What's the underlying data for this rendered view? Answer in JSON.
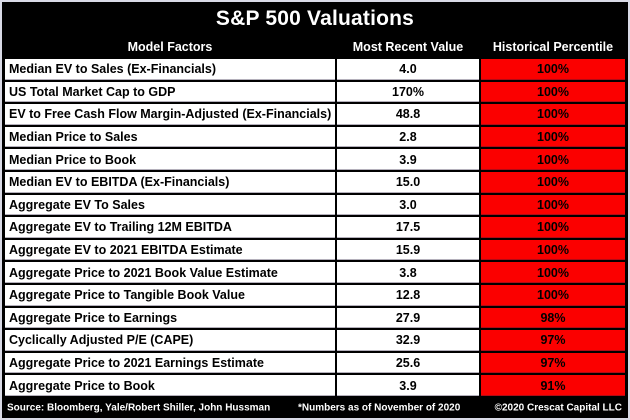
{
  "title": "S&P 500 Valuations",
  "chart_data": {
    "type": "table",
    "title": "S&P 500 Valuations",
    "columns": [
      "Model Factors",
      "Most Recent Value",
      "Historical Percentile"
    ],
    "rows": [
      {
        "factor": "Median EV to Sales (Ex-Financials)",
        "value": "4.0",
        "percentile": "100%"
      },
      {
        "factor": "US Total Market Cap to GDP",
        "value": "170%",
        "percentile": "100%"
      },
      {
        "factor": "EV to Free Cash Flow Margin-Adjusted (Ex-Financials)",
        "value": "48.8",
        "percentile": "100%"
      },
      {
        "factor": "Median Price to Sales",
        "value": "2.8",
        "percentile": "100%"
      },
      {
        "factor": "Median Price to Book",
        "value": "3.9",
        "percentile": "100%"
      },
      {
        "factor": "Median EV to EBITDA (Ex-Financials)",
        "value": "15.0",
        "percentile": "100%"
      },
      {
        "factor": "Aggregate EV To Sales",
        "value": "3.0",
        "percentile": "100%"
      },
      {
        "factor": "Aggregate EV to Trailing 12M EBITDA",
        "value": "17.5",
        "percentile": "100%"
      },
      {
        "factor": "Aggregate EV to 2021 EBITDA Estimate",
        "value": "15.9",
        "percentile": "100%"
      },
      {
        "factor": "Aggregate Price to 2021 Book Value Estimate",
        "value": "3.8",
        "percentile": "100%"
      },
      {
        "factor": "Aggregate Price to Tangible Book Value",
        "value": "12.8",
        "percentile": "100%"
      },
      {
        "factor": "Aggregate Price to Earnings",
        "value": "27.9",
        "percentile": "98%"
      },
      {
        "factor": "Cyclically Adjusted P/E (CAPE)",
        "value": "32.9",
        "percentile": "97%"
      },
      {
        "factor": "Aggregate Price to 2021 Earnings Estimate",
        "value": "25.6",
        "percentile": "97%"
      },
      {
        "factor": "Aggregate Price to Book",
        "value": "3.9",
        "percentile": "91%"
      }
    ],
    "layout_hints": {
      "percentile_column_background": "#fb0000",
      "header_background": "#000000",
      "header_text_color": "#ffffff",
      "cell_text_color": "#000000"
    }
  },
  "footer": {
    "source": "Source: Bloomberg, Yale/Robert Shiller, John Hussman",
    "note": "*Numbers as of November of 2020",
    "copyright": "©2020 Crescat Capital LLC"
  },
  "colors": {
    "percentile_red": "#fb0000",
    "band_black": "#000000",
    "cell_white": "#ffffff"
  }
}
